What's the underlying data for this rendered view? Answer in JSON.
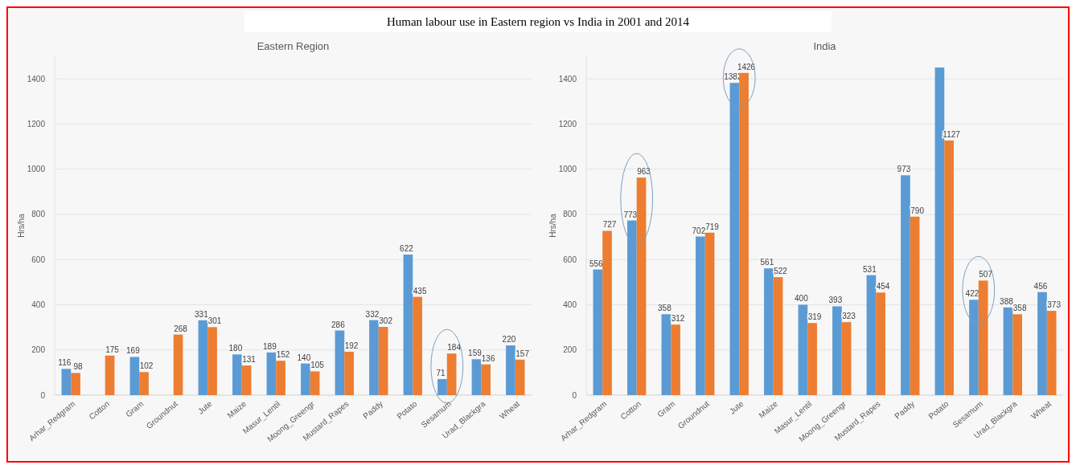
{
  "chart_data": [
    {
      "type": "bar",
      "title": "Eastern Region",
      "ylabel": "Hrs/ha",
      "annotations": [
        "Human labour use in Eastern region vs India in 2001 and 2014"
      ],
      "categories": [
        "Arhar_Redgram",
        "Cotton",
        "Gram",
        "Groundnut",
        "Jute",
        "Maize",
        "Masur_Lentil",
        "Moong_Greengr",
        "Mustard_Rapes",
        "Paddy",
        "Potato",
        "Sesamum",
        "Urad_Blackgra",
        "Wheat"
      ],
      "series": [
        {
          "color": "#5b9bd5",
          "values": [
            116,
            null,
            169,
            null,
            331,
            180,
            189,
            140,
            286,
            332,
            622,
            71,
            159,
            220
          ],
          "value_labels": [
            "116",
            null,
            "169",
            null,
            "331",
            "180",
            "189",
            "140",
            "286",
            "332",
            "622",
            "71",
            "159",
            "220"
          ]
        },
        {
          "color": "#ed7d31",
          "values": [
            98,
            175,
            102,
            268,
            301,
            131,
            152,
            105,
            192,
            302,
            435,
            184,
            136,
            157
          ],
          "value_labels": [
            "98",
            "175",
            "102",
            "268",
            "301",
            "131",
            "152",
            "105",
            "192",
            "302",
            "435",
            "184",
            "136",
            "157"
          ]
        }
      ],
      "ylim": [
        0,
        1500
      ],
      "yticks": [
        0,
        200,
        400,
        600,
        800,
        1000,
        1200,
        1400
      ],
      "grid": "y"
    },
    {
      "type": "bar",
      "title": "India",
      "ylabel": "Hrs/ha",
      "categories": [
        "Arhar_Redgram",
        "Cotton",
        "Gram",
        "Groundnut",
        "Jute",
        "Maize",
        "Masur_Lentil",
        "Moong_Greengr",
        "Mustard_Rapes",
        "Paddy",
        "Potato",
        "Sesamum",
        "Urad_Blackgra",
        "Wheat"
      ],
      "series": [
        {
          "color": "#5b9bd5",
          "values": [
            556,
            773,
            358,
            702,
            1382,
            561,
            400,
            393,
            531,
            973,
            1450,
            422,
            388,
            456
          ],
          "value_labels": [
            "556",
            "773",
            "358",
            "702",
            "1382",
            "561",
            "400",
            "393",
            "531",
            "973",
            null,
            "422",
            "388",
            "456"
          ]
        },
        {
          "color": "#ed7d31",
          "values": [
            727,
            963,
            312,
            719,
            1426,
            522,
            319,
            323,
            454,
            790,
            1127,
            507,
            358,
            373
          ],
          "value_labels": [
            "727",
            "963",
            "312",
            "719",
            "1426",
            "522",
            "319",
            "323",
            "454",
            "790",
            "1127",
            "507",
            "358",
            "373"
          ]
        }
      ],
      "ylim": [
        0,
        1500
      ],
      "yticks": [
        0,
        200,
        400,
        600,
        800,
        1000,
        1200,
        1400
      ],
      "grid": "y"
    }
  ]
}
